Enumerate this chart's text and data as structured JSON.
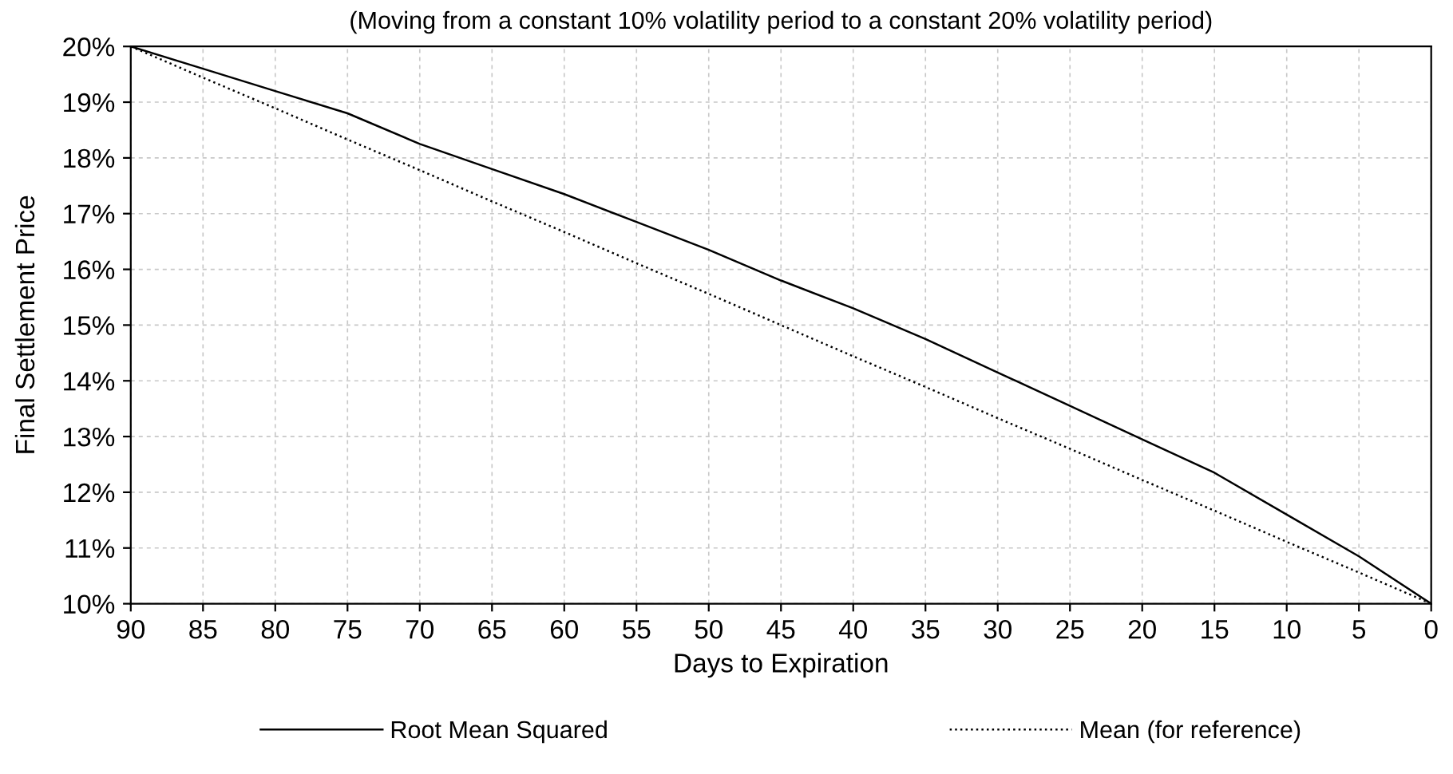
{
  "chart_data": {
    "type": "line",
    "title": "(Moving from a constant 10% volatility period to a constant 20% volatility period)",
    "xlabel": "Days to Expiration",
    "ylabel": "Final Settlement Price",
    "x": [
      90,
      85,
      80,
      75,
      70,
      65,
      60,
      55,
      50,
      45,
      40,
      35,
      30,
      25,
      20,
      15,
      10,
      5,
      0
    ],
    "series": [
      {
        "name": "Root Mean Squared",
        "color": "#000000",
        "line_style": "solid",
        "values": [
          20,
          19.6,
          19.2,
          18.8,
          18.25,
          17.8,
          17.35,
          16.85,
          16.35,
          15.8,
          15.3,
          14.75,
          14.15,
          13.55,
          12.95,
          12.35,
          11.6,
          10.85,
          10
        ]
      },
      {
        "name": "Mean (for reference)",
        "color": "#000000",
        "line_style": "dotted",
        "values": [
          20,
          19.44,
          18.89,
          18.33,
          17.78,
          17.22,
          16.67,
          16.11,
          15.56,
          15,
          14.44,
          13.89,
          13.33,
          12.78,
          12.22,
          11.67,
          11.11,
          10.56,
          10
        ]
      }
    ],
    "xlim": [
      90,
      0
    ],
    "xticks": [
      90,
      85,
      80,
      75,
      70,
      65,
      60,
      55,
      50,
      45,
      40,
      35,
      30,
      25,
      20,
      15,
      10,
      5,
      0
    ],
    "ylim": [
      10,
      20
    ],
    "yticks": [
      {
        "value": 10,
        "label": "10%"
      },
      {
        "value": 11,
        "label": "11%"
      },
      {
        "value": 12,
        "label": "12%"
      },
      {
        "value": 13,
        "label": "13%"
      },
      {
        "value": 14,
        "label": "14%"
      },
      {
        "value": 15,
        "label": "15%"
      },
      {
        "value": 16,
        "label": "16%"
      },
      {
        "value": 17,
        "label": "17%"
      },
      {
        "value": 18,
        "label": "18%"
      },
      {
        "value": 19,
        "label": "19%"
      },
      {
        "value": 20,
        "label": "20%"
      }
    ],
    "grid": true,
    "legend": "bottom"
  }
}
